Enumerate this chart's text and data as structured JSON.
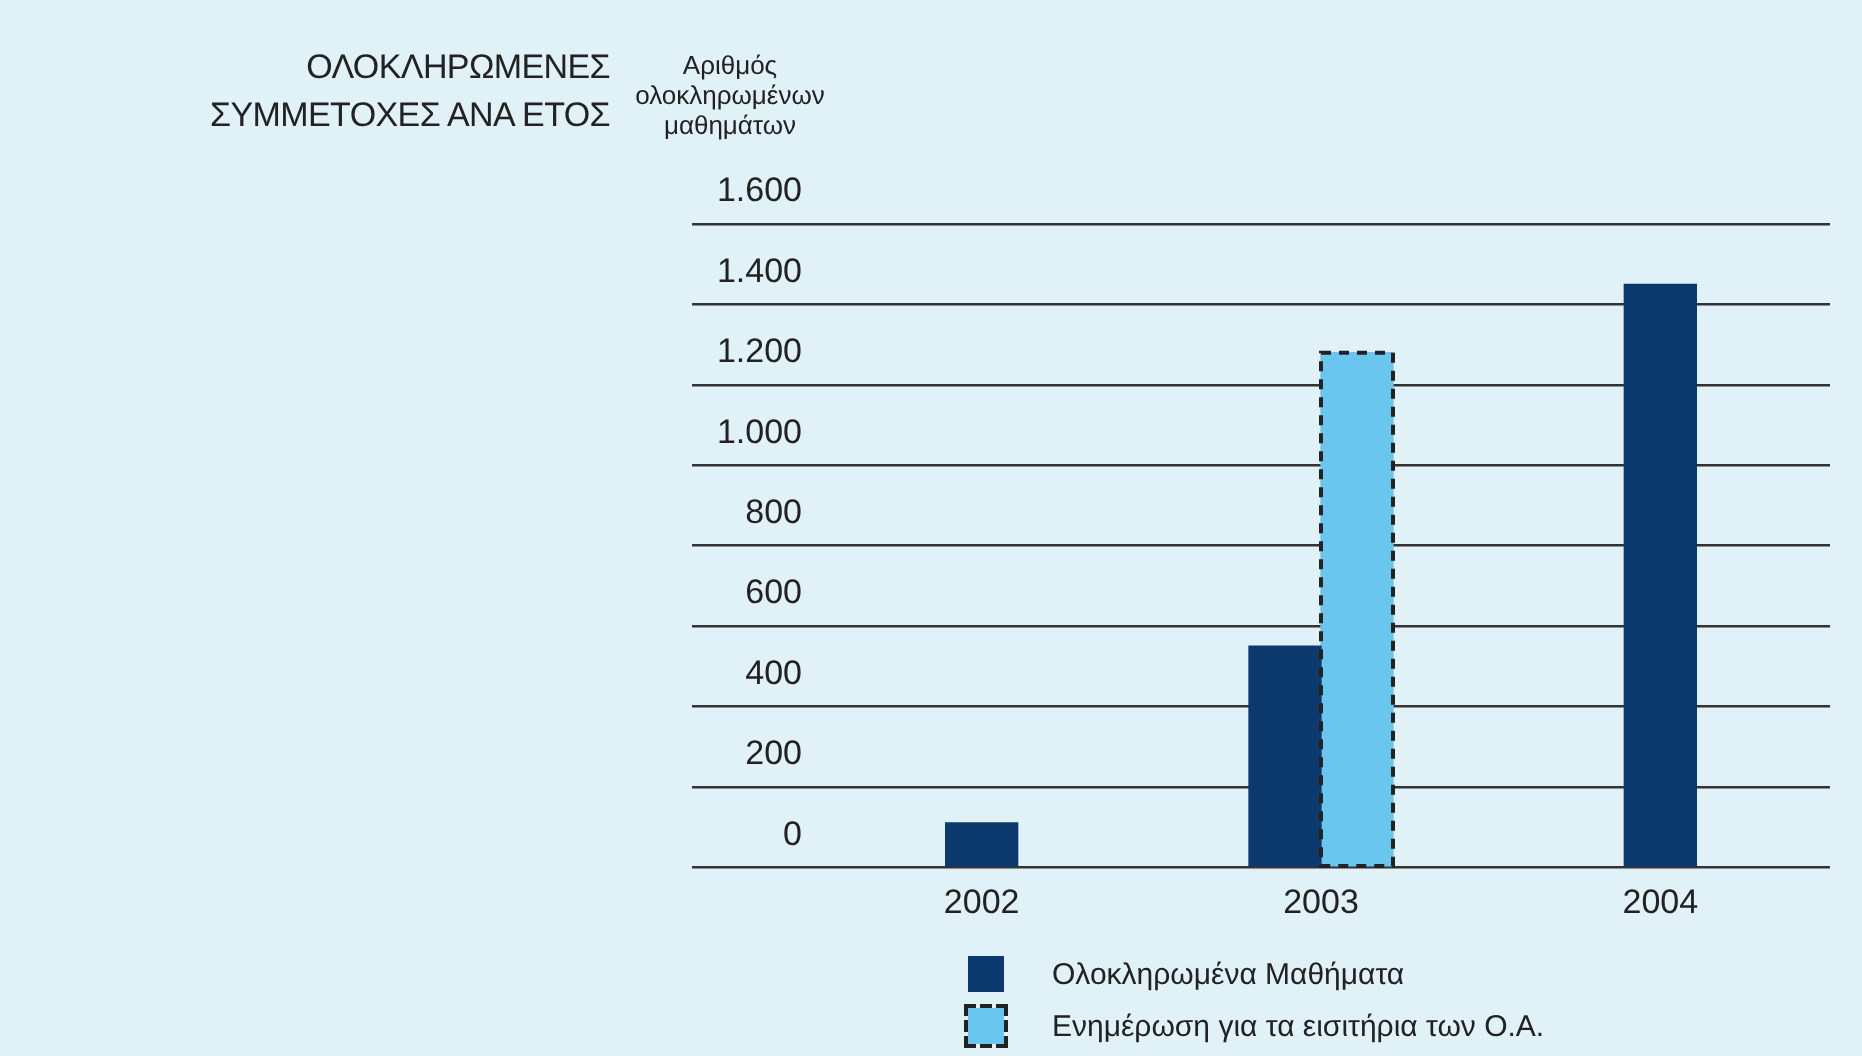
{
  "chart_data": {
    "type": "bar",
    "title": "ΟΛΟΚΛΗΡΩΜΕΝΕΣ ΣΥΜΜΕΤΟΧΕΣ ΑΝΑ ΕΤΟΣ",
    "ylabel": "Αριθμός ολοκληρωμένων μαθημάτων",
    "categories": [
      "2002",
      "2003",
      "2004"
    ],
    "series": [
      {
        "name": "Ολοκληρωμένα Μαθήματα",
        "color": "#0d3a6e",
        "values": [
          110,
          550,
          1450
        ]
      },
      {
        "name": "Ενημέρωση για τα εισιτήρια των Ο.Α.",
        "color": "#6bc6ef",
        "values": [
          null,
          1280,
          null
        ],
        "line_style": "dashed"
      }
    ],
    "ylim": [
      0,
      1600
    ],
    "yticks": [
      0,
      200,
      400,
      600,
      800,
      {
        "value": 1000,
        "label": "1.000"
      },
      {
        "value": 1200,
        "label": "1.200"
      },
      {
        "value": 1400,
        "label": "1.400"
      },
      {
        "value": 1600,
        "label": "1.600"
      }
    ],
    "grid": "y",
    "legend": "bottom"
  }
}
